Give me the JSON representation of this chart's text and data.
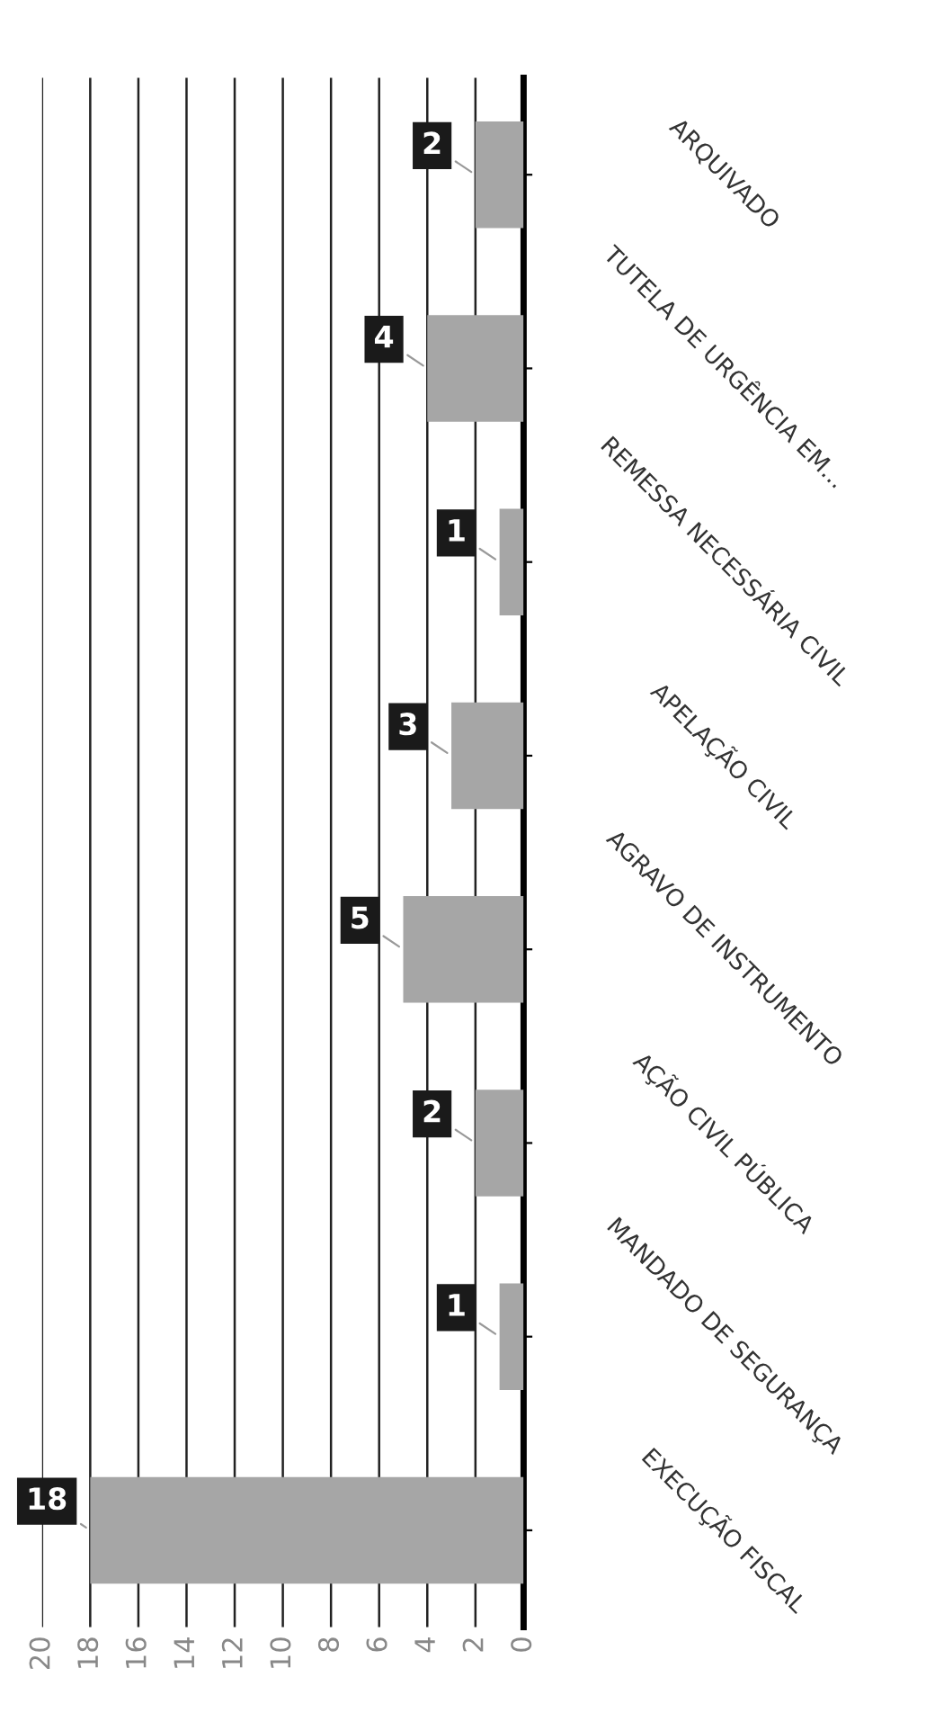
{
  "chart_data": {
    "type": "bar",
    "orientation": "horizontal",
    "categories": [
      "ARQUIVADO",
      "TUTELA DE URGÊNCIA EM...",
      "REMESSA NECESSÁRIA CIVIL",
      "APELAÇÃO CIVIL",
      "AGRAVO DE INSTRUMENTO",
      "AÇÃO CIVIL PÚBLICA",
      "MANDADO DE SEGURANÇA",
      "EXECUÇÃO FISCAL"
    ],
    "values": [
      2,
      4,
      1,
      3,
      5,
      2,
      1,
      18
    ],
    "color": "#a6a6a6",
    "xlim": [
      20,
      0
    ],
    "xticks": [
      0,
      2,
      4,
      6,
      8,
      10,
      12,
      14,
      16,
      18,
      20
    ],
    "grid": "x",
    "data_labels": true
  }
}
